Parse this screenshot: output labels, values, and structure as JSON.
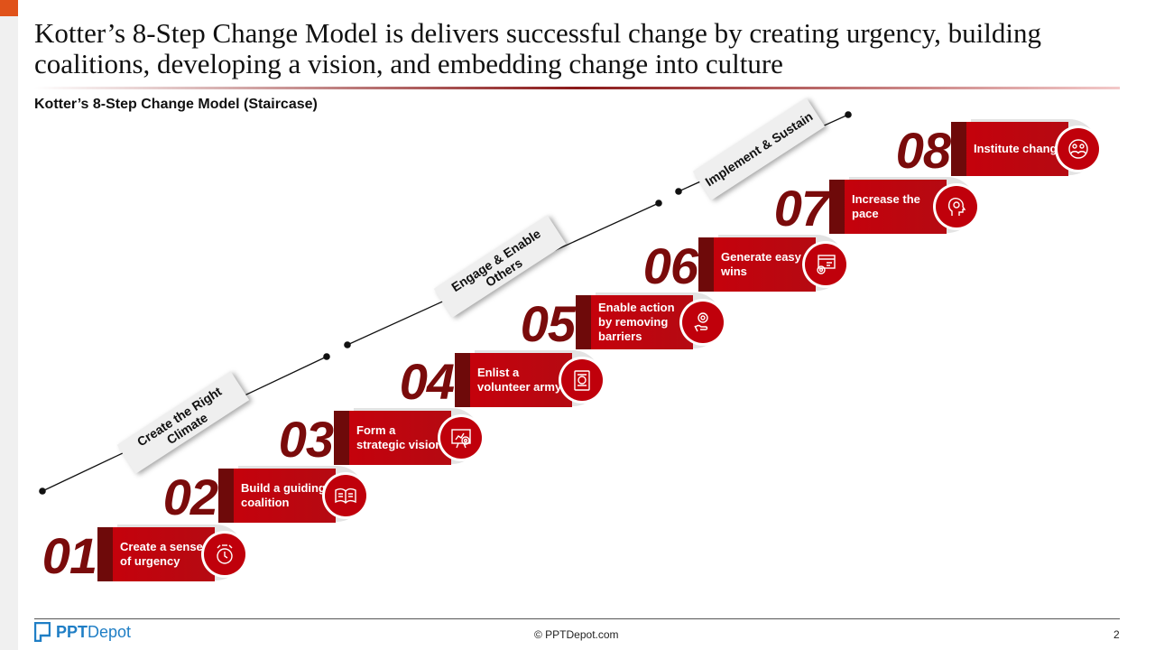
{
  "slide": {
    "title": "Kotter’s 8-Step Change Model is delivers successful change by creating urgency, building coalitions, developing a vision, and embedding change into culture",
    "subtitle": "Kotter’s 8-Step Change Model (Staircase)"
  },
  "steps": [
    {
      "num": "01",
      "label": "Create a sense of urgency",
      "icon": "alarm-clock-icon"
    },
    {
      "num": "02",
      "label": "Build a guiding coalition",
      "icon": "open-book-icon"
    },
    {
      "num": "03",
      "label": "Form a strategic vision",
      "icon": "presentation-target-icon"
    },
    {
      "num": "04",
      "label": "Enlist a volunteer army",
      "icon": "badge-document-icon"
    },
    {
      "num": "05",
      "label": "Enable action by removing barriers",
      "icon": "hand-target-icon"
    },
    {
      "num": "06",
      "label": "Generate easy wins",
      "icon": "browser-gear-icon"
    },
    {
      "num": "07",
      "label": "Increase the pace",
      "icon": "head-gear-icon"
    },
    {
      "num": "08",
      "label": "Institute change",
      "icon": "team-cycle-icon"
    }
  ],
  "phases": [
    {
      "label": "Create the Right Climate"
    },
    {
      "label": "Engage & Enable Others"
    },
    {
      "label": "Implement & Sustain"
    }
  ],
  "footer": {
    "brand_bold": "PPT",
    "brand_rest": "Depot",
    "copyright": "© PPTDepot.com",
    "page_number": "2"
  },
  "colors": {
    "accent_red": "#c7000b",
    "dark_red": "#7a0b0b",
    "brand_blue": "#1f7ec5",
    "orange_corner": "#e0521a"
  }
}
